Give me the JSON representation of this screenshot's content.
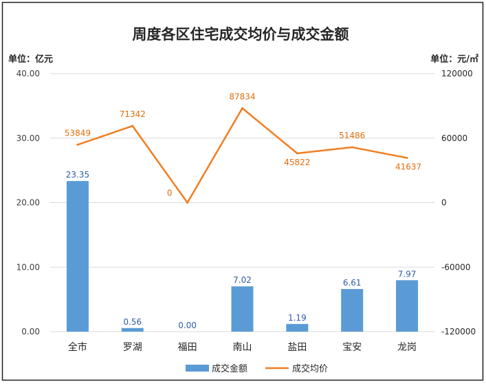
{
  "chart_data": {
    "type": "bar",
    "title": "周度各区住宅成交均价与成交金额",
    "left_unit_label": "单位：亿元",
    "right_unit_label": "单位：元/㎡",
    "categories": [
      "全市",
      "罗湖",
      "福田",
      "南山",
      "盐田",
      "宝安",
      "龙岗"
    ],
    "y_left": {
      "range": [
        0,
        40
      ],
      "ticks": [
        0,
        10,
        20,
        30,
        40
      ],
      "tick_labels": [
        "0.00",
        "10.00",
        "20.00",
        "30.00",
        "40.00"
      ]
    },
    "y_right": {
      "range": [
        -120000,
        120000
      ],
      "ticks": [
        -120000,
        -60000,
        0,
        60000,
        120000
      ],
      "tick_labels": [
        "-120000",
        "-60000",
        "0",
        "60000",
        "120000"
      ]
    },
    "series": [
      {
        "name": "成交金额",
        "type": "bar",
        "axis": "left",
        "color": "#5b9bd5",
        "values": [
          23.35,
          0.56,
          0.0,
          7.02,
          1.19,
          6.61,
          7.97
        ],
        "labels": [
          "23.35",
          "0.56",
          "0.00",
          "7.02",
          "1.19",
          "6.61",
          "7.97"
        ]
      },
      {
        "name": "成交均价",
        "type": "line",
        "axis": "right",
        "color": "#f27c1e",
        "values": [
          53849,
          71342,
          0,
          87834,
          45822,
          51486,
          41637
        ],
        "labels": [
          "53849",
          "71342",
          "0",
          "87834",
          "45822",
          "51486",
          "41637"
        ]
      }
    ],
    "legend_position": "bottom",
    "grid": true,
    "left_tick_label_color": "#404040",
    "bar_label_color": "#2f5aa8",
    "line_label_color": "#e46c0a"
  }
}
